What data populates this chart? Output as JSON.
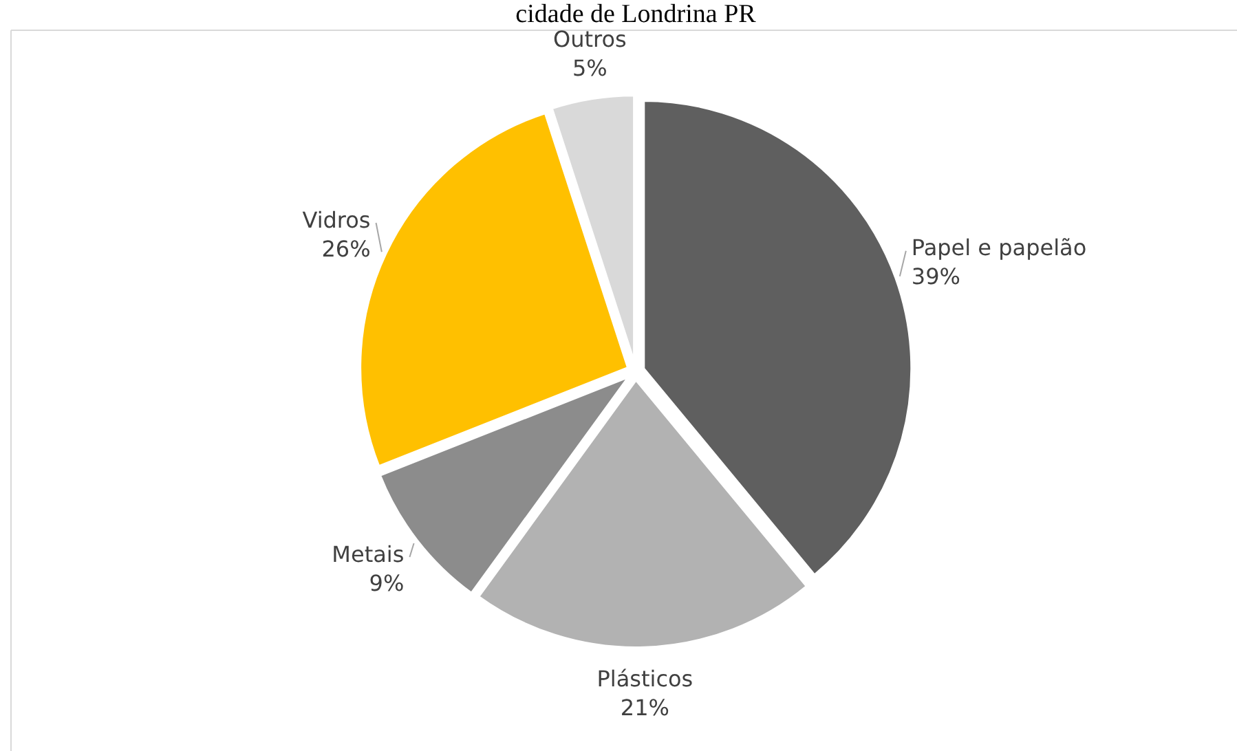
{
  "chart_data": {
    "type": "pie",
    "title": "cidade de Londrina PR",
    "categories": [
      "Papel e papelão",
      "Plásticos",
      "Metais",
      "Vidros",
      "Outros"
    ],
    "values": [
      39,
      21,
      9,
      26,
      5
    ],
    "value_labels": [
      "39%",
      "21%",
      "9%",
      "26%",
      "5%"
    ],
    "colors": [
      "#5f5f5f",
      "#b2b2b2",
      "#8c8c8c",
      "#ffc000",
      "#d9d9d9"
    ]
  }
}
